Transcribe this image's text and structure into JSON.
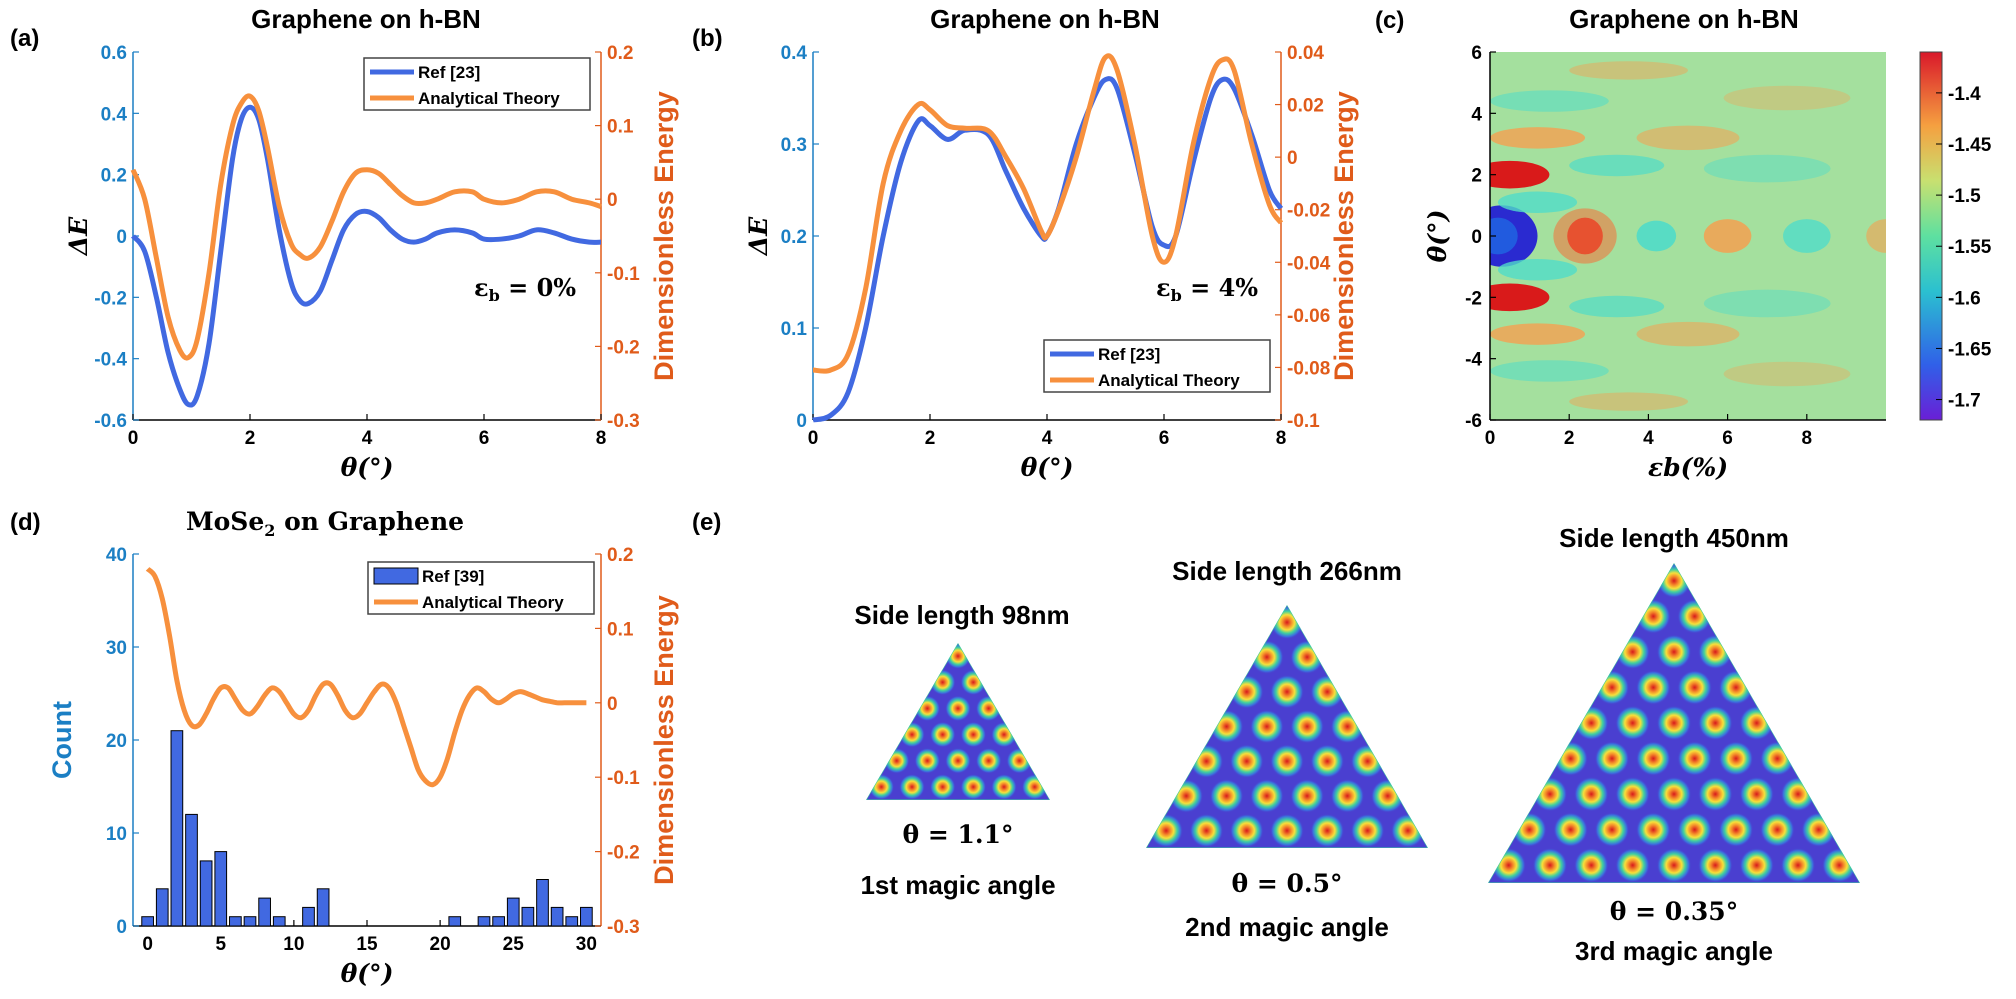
{
  "colors": {
    "blue": "#4169E1",
    "orange": "#F7903D",
    "blue_axis": "#1B7FC4",
    "orange_axis": "#E05B1A"
  },
  "panels": {
    "a": {
      "label": "(a)",
      "title": "Graphene on h-BN",
      "annotation": "εb = 0%"
    },
    "b": {
      "label": "(b)",
      "title": "Graphene on h-BN",
      "annotation": "εb = 4%"
    },
    "c": {
      "label": "(c)",
      "title": "Graphene on h-BN"
    },
    "d": {
      "label": "(d)",
      "title": "MoSe2 on Graphene"
    },
    "e": {
      "label": "(e)"
    }
  },
  "chart_data": [
    {
      "id": "a",
      "type": "line",
      "title": "Graphene on h-BN",
      "xlabel": "θ(°)",
      "ylabel_left": "ΔE",
      "ylabel_right": "Dimensionless Energy",
      "xlim": [
        0,
        8
      ],
      "ylim_left": [
        -0.6,
        0.6
      ],
      "ylim_right": [
        -0.3,
        0.2
      ],
      "xticks": [
        0,
        2,
        4,
        6,
        8
      ],
      "yticks_left": [
        -0.6,
        -0.4,
        -0.2,
        0,
        0.2,
        0.4,
        0.6
      ],
      "yticks_left_labels": [
        "-0.6",
        "-0.4",
        "-0.2",
        "0",
        "0.2",
        "0.4",
        "0.6"
      ],
      "yticks_right": [
        -0.3,
        -0.2,
        -0.1,
        0,
        0.1,
        0.2
      ],
      "yticks_right_labels": [
        "-0.3",
        "-0.2",
        "-0.1",
        "0",
        "0.1",
        "0.2"
      ],
      "legend": [
        "Ref [23]",
        "Analytical Theory"
      ],
      "legend_position": "top-right",
      "series": [
        {
          "name": "Ref [23]",
          "axis": "left",
          "color": "#4169E1",
          "x": [
            0,
            0.2,
            0.4,
            0.6,
            0.8,
            0.95,
            1.1,
            1.3,
            1.5,
            1.7,
            1.85,
            2.0,
            2.15,
            2.3,
            2.5,
            2.7,
            2.85,
            3.0,
            3.2,
            3.4,
            3.6,
            3.8,
            4.0,
            4.2,
            4.4,
            4.6,
            4.8,
            5.0,
            5.2,
            5.5,
            5.8,
            6.0,
            6.3,
            6.6,
            6.9,
            7.2,
            7.5,
            7.8,
            8.0
          ],
          "y": [
            0,
            -0.05,
            -0.2,
            -0.38,
            -0.5,
            -0.55,
            -0.52,
            -0.35,
            -0.05,
            0.25,
            0.38,
            0.42,
            0.38,
            0.25,
            0.02,
            -0.15,
            -0.21,
            -0.22,
            -0.18,
            -0.08,
            0.02,
            0.07,
            0.08,
            0.06,
            0.02,
            -0.01,
            -0.02,
            -0.01,
            0.01,
            0.02,
            0.01,
            -0.01,
            -0.01,
            0,
            0.02,
            0.01,
            -0.01,
            -0.02,
            -0.02
          ]
        },
        {
          "name": "Analytical Theory",
          "axis": "right",
          "color": "#F7903D",
          "x": [
            0,
            0.2,
            0.4,
            0.6,
            0.8,
            0.95,
            1.1,
            1.3,
            1.5,
            1.7,
            1.85,
            2.0,
            2.15,
            2.3,
            2.5,
            2.7,
            2.85,
            3.0,
            3.2,
            3.4,
            3.6,
            3.8,
            4.0,
            4.2,
            4.4,
            4.6,
            4.8,
            5.0,
            5.2,
            5.5,
            5.8,
            6.0,
            6.3,
            6.6,
            6.9,
            7.2,
            7.5,
            7.8,
            8.0
          ],
          "y": [
            0.04,
            0.0,
            -0.08,
            -0.16,
            -0.205,
            -0.215,
            -0.19,
            -0.1,
            0.02,
            0.1,
            0.13,
            0.14,
            0.12,
            0.07,
            -0.01,
            -0.06,
            -0.075,
            -0.08,
            -0.065,
            -0.03,
            0.01,
            0.035,
            0.04,
            0.035,
            0.02,
            0.005,
            -0.005,
            -0.005,
            0.0,
            0.01,
            0.01,
            0.0,
            -0.005,
            0.0,
            0.01,
            0.01,
            0.0,
            -0.005,
            -0.01
          ]
        }
      ]
    },
    {
      "id": "b",
      "type": "line",
      "title": "Graphene on h-BN",
      "xlabel": "θ(°)",
      "ylabel_left": "ΔE",
      "ylabel_right": "Dimensionless Energy",
      "xlim": [
        0,
        8
      ],
      "ylim_left": [
        0,
        0.4
      ],
      "ylim_right": [
        -0.1,
        0.04
      ],
      "xticks": [
        0,
        2,
        4,
        6,
        8
      ],
      "yticks_left": [
        0,
        0.1,
        0.2,
        0.3,
        0.4
      ],
      "yticks_left_labels": [
        "0",
        "0.1",
        "0.2",
        "0.3",
        "0.4"
      ],
      "yticks_right": [
        -0.1,
        -0.08,
        -0.06,
        -0.04,
        -0.02,
        0,
        0.02,
        0.04
      ],
      "yticks_right_labels": [
        "-0.1",
        "-0.08",
        "-0.06",
        "-0.04",
        "-0.02",
        "0",
        "0.02",
        "0.04"
      ],
      "legend": [
        "Ref [23]",
        "Analytical Theory"
      ],
      "legend_position": "bottom-right",
      "series": [
        {
          "name": "Ref [23]",
          "axis": "left",
          "color": "#4169E1",
          "x": [
            0,
            0.3,
            0.6,
            0.9,
            1.2,
            1.5,
            1.8,
            2.0,
            2.3,
            2.6,
            3.0,
            3.3,
            3.6,
            3.9,
            4.0,
            4.2,
            4.5,
            4.8,
            5.0,
            5.2,
            5.5,
            5.8,
            6.0,
            6.2,
            6.5,
            6.8,
            7.0,
            7.2,
            7.5,
            7.8,
            8.0
          ],
          "y": [
            0.0,
            0.005,
            0.03,
            0.1,
            0.2,
            0.28,
            0.325,
            0.32,
            0.305,
            0.315,
            0.31,
            0.27,
            0.23,
            0.2,
            0.2,
            0.23,
            0.3,
            0.35,
            0.37,
            0.36,
            0.29,
            0.21,
            0.19,
            0.2,
            0.28,
            0.35,
            0.37,
            0.36,
            0.31,
            0.25,
            0.23
          ]
        },
        {
          "name": "Analytical Theory",
          "axis": "right",
          "color": "#F7903D",
          "x": [
            0,
            0.3,
            0.6,
            0.9,
            1.2,
            1.5,
            1.8,
            2.0,
            2.3,
            2.6,
            3.0,
            3.3,
            3.6,
            3.9,
            4.0,
            4.2,
            4.5,
            4.8,
            5.0,
            5.2,
            5.5,
            5.8,
            6.0,
            6.2,
            6.5,
            6.8,
            7.0,
            7.2,
            7.5,
            7.8,
            8.0
          ],
          "y": [
            -0.081,
            -0.081,
            -0.075,
            -0.05,
            -0.01,
            0.01,
            0.02,
            0.018,
            0.012,
            0.011,
            0.01,
            0.0,
            -0.012,
            -0.028,
            -0.03,
            -0.02,
            0.0,
            0.025,
            0.038,
            0.033,
            0.005,
            -0.03,
            -0.04,
            -0.03,
            0.005,
            0.03,
            0.037,
            0.033,
            0.005,
            -0.018,
            -0.025
          ]
        }
      ]
    },
    {
      "id": "c",
      "type": "heatmap",
      "title": "Graphene on h-BN",
      "xlabel": "εb(%)",
      "ylabel": "θ(°)",
      "xlim": [
        0,
        10
      ],
      "ylim": [
        -6,
        6
      ],
      "xticks": [
        0,
        2,
        4,
        6,
        8
      ],
      "yticks": [
        -6,
        -4,
        -2,
        0,
        2,
        4,
        6
      ],
      "colorbar_range": [
        -1.72,
        -1.36
      ],
      "colorbar_ticks": [
        -1.7,
        -1.65,
        -1.6,
        -1.55,
        -1.5,
        -1.45,
        -1.4
      ],
      "colorbar_tick_labels": [
        "-1.7",
        "-1.65",
        "-1.6",
        "-1.55",
        "-1.5",
        "-1.45",
        "-1.4"
      ]
    },
    {
      "id": "d",
      "type": "bar",
      "title": "MoSe2 on Graphene",
      "xlabel": "θ(°)",
      "ylabel_left": "Count",
      "ylabel_right": "Dimensionless Energy",
      "xlim": [
        -1,
        31
      ],
      "ylim_left": [
        0,
        40
      ],
      "ylim_right": [
        -0.3,
        0.2
      ],
      "xticks": [
        0,
        5,
        10,
        15,
        20,
        25,
        30
      ],
      "yticks_left": [
        0,
        10,
        20,
        30,
        40
      ],
      "yticks_left_labels": [
        "0",
        "10",
        "20",
        "30",
        "40"
      ],
      "yticks_right": [
        -0.3,
        -0.2,
        -0.1,
        0,
        0.1,
        0.2
      ],
      "yticks_right_labels": [
        "-0.3",
        "-0.2",
        "-0.1",
        "0",
        "0.1",
        "0.2"
      ],
      "legend": [
        "Ref [39]",
        "Analytical Theory"
      ],
      "legend_position": "top-right",
      "bars": {
        "name": "Ref [39]",
        "color": "#4169E1",
        "x": [
          0,
          1,
          2,
          3,
          4,
          5,
          6,
          7,
          8,
          9,
          10,
          11,
          12,
          13,
          14,
          15,
          16,
          17,
          18,
          19,
          20,
          21,
          22,
          23,
          24,
          25,
          26,
          27,
          28,
          29,
          30
        ],
        "counts": [
          1,
          4,
          21,
          12,
          7,
          8,
          1,
          1,
          3,
          1,
          0,
          2,
          4,
          0,
          0,
          0,
          0,
          0,
          0,
          0,
          0,
          1,
          0,
          1,
          1,
          3,
          2,
          5,
          2,
          1,
          2
        ]
      },
      "series": [
        {
          "name": "Analytical Theory",
          "axis": "right",
          "color": "#F7903D",
          "x": [
            0,
            0.5,
            1,
            1.5,
            2,
            2.5,
            3,
            3.5,
            4,
            4.5,
            5,
            5.5,
            6,
            6.5,
            7,
            7.5,
            8,
            8.5,
            9,
            9.5,
            10,
            10.5,
            11,
            11.5,
            12,
            12.5,
            13,
            13.5,
            14,
            14.5,
            15,
            15.5,
            16,
            16.5,
            17,
            17.5,
            18,
            18.5,
            19,
            19.5,
            20,
            20.5,
            21,
            21.5,
            22,
            22.5,
            23,
            23.5,
            24,
            24.5,
            25,
            25.5,
            26,
            26.5,
            27,
            27.5,
            28,
            28.5,
            29,
            29.5,
            30
          ],
          "y": [
            0.18,
            0.17,
            0.14,
            0.09,
            0.03,
            -0.01,
            -0.03,
            -0.03,
            -0.015,
            0.005,
            0.02,
            0.02,
            0.005,
            -0.01,
            -0.015,
            -0.005,
            0.01,
            0.02,
            0.015,
            0.0,
            -0.015,
            -0.02,
            -0.01,
            0.01,
            0.025,
            0.025,
            0.01,
            -0.01,
            -0.02,
            -0.015,
            0.0,
            0.015,
            0.025,
            0.02,
            0.0,
            -0.03,
            -0.06,
            -0.09,
            -0.105,
            -0.11,
            -0.1,
            -0.075,
            -0.04,
            -0.01,
            0.01,
            0.02,
            0.015,
            0.005,
            0.0,
            0.005,
            0.012,
            0.015,
            0.012,
            0.008,
            0.004,
            0.002,
            0.0,
            0.0,
            0.0,
            0.0,
            0.0
          ]
        }
      ]
    }
  ],
  "triangles": [
    {
      "title": "Side length 98nm",
      "angle": "θ = 1.1°",
      "caption": "1st magic angle"
    },
    {
      "title": "Side length 266nm",
      "angle": "θ = 0.5°",
      "caption": "2nd magic angle"
    },
    {
      "title": "Side length 450nm",
      "angle": "θ = 0.35°",
      "caption": "3rd magic angle"
    }
  ]
}
